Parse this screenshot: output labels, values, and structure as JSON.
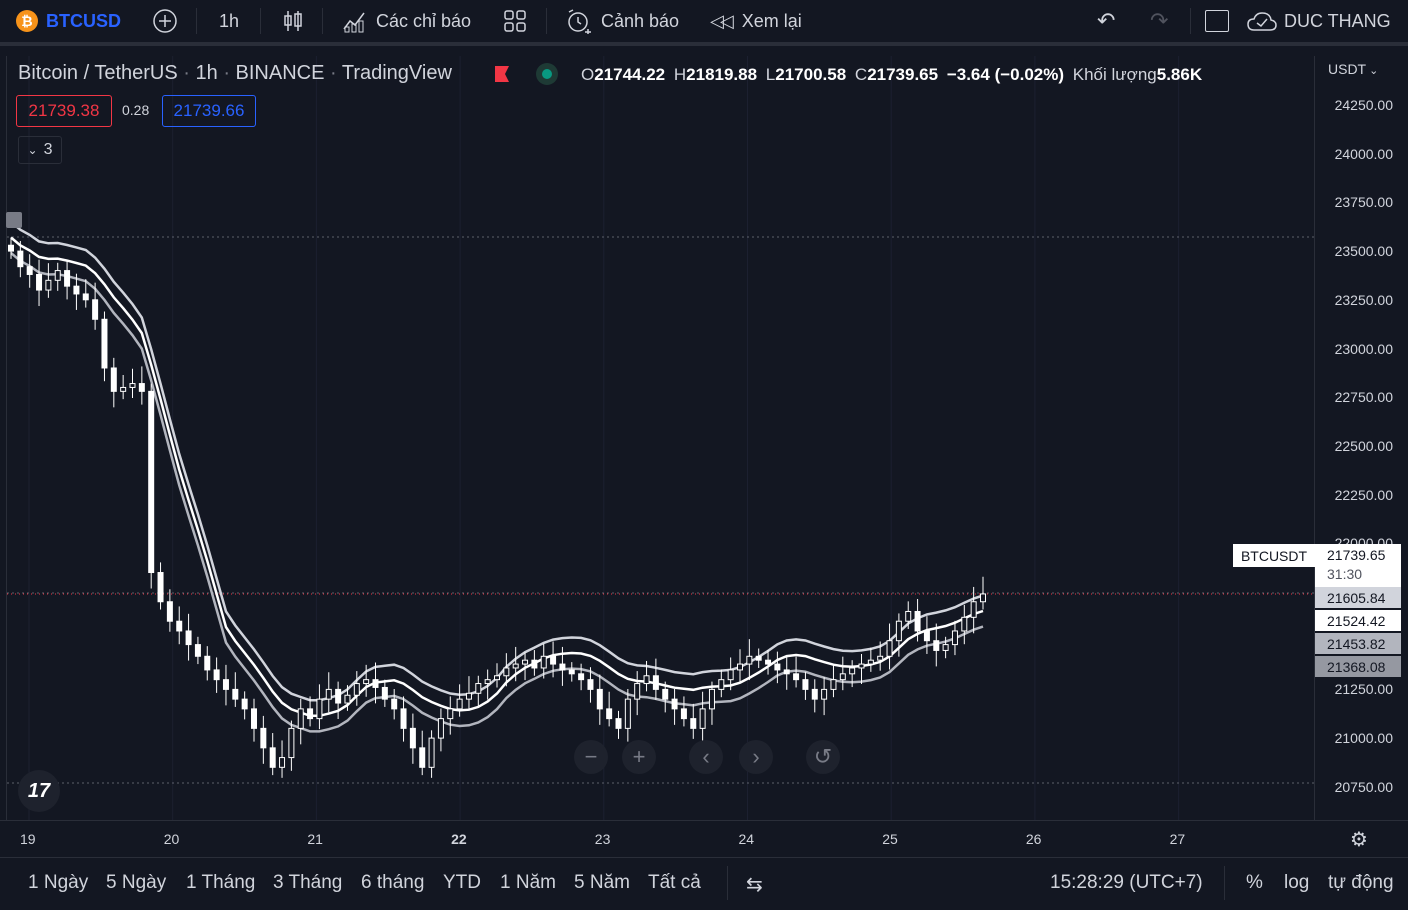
{
  "toolbar": {
    "symbol": "BTCUSD",
    "interval": "1h",
    "indicators_label": "Các chỉ báo",
    "alert_label": "Cảnh báo",
    "replay_label": "Xem lại",
    "user": "DUC THANG"
  },
  "legend": {
    "title": "Bitcoin / TetherUS",
    "interval": "1h",
    "exchange": "BINANCE",
    "source": "TradingView",
    "o_label": "O",
    "o": "21744.22",
    "h_label": "H",
    "h": "21819.88",
    "l_label": "L",
    "l": "21700.58",
    "c_label": "C",
    "c": "21739.65",
    "change": "−3.64 (−0.02%)",
    "volume_label": "Khối lượng",
    "volume": "5.86K",
    "bid": "21739.38",
    "spread": "0.28",
    "ask": "21739.66",
    "indicators_count": "3"
  },
  "price_axis": {
    "currency": "USDT",
    "labels": [
      "24250.00",
      "24000.00",
      "23750.00",
      "23500.00",
      "23250.00",
      "23000.00",
      "22750.00",
      "22500.00",
      "22250.00",
      "22000.00",
      "21250.00",
      "21000.00",
      "20750.00"
    ]
  },
  "price_tags": {
    "symbol_label": "BTCUSDT",
    "last": "21739.65",
    "countdown": "31:30",
    "band_upper": "21605.84",
    "band_mid": "21524.42",
    "band_lower1": "21453.82",
    "band_lower2": "21368.08"
  },
  "time_axis": {
    "labels": [
      "19",
      "20",
      "21",
      "22",
      "23",
      "24",
      "25",
      "26",
      "27"
    ]
  },
  "bottom": {
    "ranges": [
      "1 Ngày",
      "5 Ngày",
      "1 Tháng",
      "3 Tháng",
      "6 tháng",
      "YTD",
      "1 Năm",
      "5 Năm",
      "Tất cả"
    ],
    "clock": "15:28:29 (UTC+7)",
    "percent": "%",
    "log": "log",
    "auto": "tự động"
  },
  "colors": {
    "background": "#131722",
    "up": "#ffffff",
    "down": "#ffffff",
    "bid": "#f23645",
    "ask": "#2962ff"
  },
  "chart_data": {
    "type": "candlestick",
    "ylim": [
      20700,
      24300
    ],
    "x_labels": [
      "19",
      "20",
      "21",
      "22",
      "23",
      "24",
      "25",
      "26",
      "27"
    ],
    "closes": [
      23500,
      23420,
      23380,
      23300,
      23350,
      23400,
      23320,
      23280,
      23250,
      23150,
      22900,
      22780,
      22800,
      22820,
      22780,
      21850,
      21700,
      21600,
      21550,
      21480,
      21420,
      21350,
      21300,
      21250,
      21200,
      21150,
      21050,
      20950,
      20850,
      20900,
      21050,
      21150,
      21100,
      21200,
      21250,
      21180,
      21220,
      21280,
      21300,
      21260,
      21200,
      21150,
      21050,
      20950,
      20850,
      21000,
      21100,
      21150,
      21200,
      21230,
      21280,
      21300,
      21320,
      21360,
      21380,
      21400,
      21360,
      21420,
      21380,
      21350,
      21330,
      21300,
      21250,
      21150,
      21100,
      21050,
      21200,
      21280,
      21320,
      21250,
      21200,
      21150,
      21100,
      21050,
      21150,
      21250,
      21300,
      21350,
      21380,
      21420,
      21400,
      21380,
      21350,
      21330,
      21300,
      21250,
      21200,
      21250,
      21300,
      21330,
      21360,
      21380,
      21400,
      21420,
      21500,
      21600,
      21650,
      21550,
      21500,
      21450,
      21480,
      21550,
      21620,
      21700,
      21740
    ],
    "bands": {
      "upper_last": 21605.84,
      "mid_last": 21524.42,
      "lower1_last": 21453.82,
      "lower2_last": 21368.08
    }
  }
}
